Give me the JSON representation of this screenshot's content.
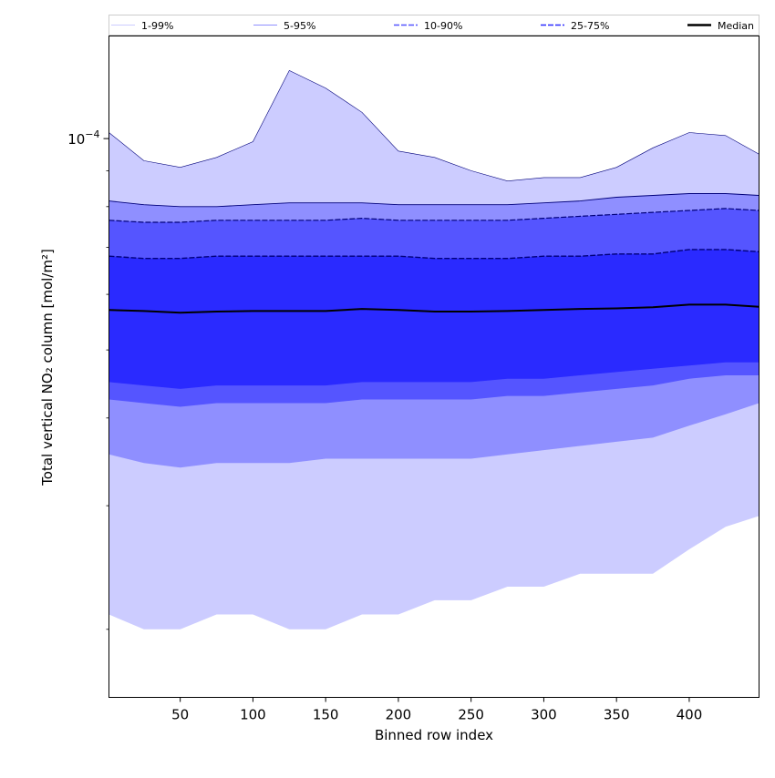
{
  "chart_data": {
    "type": "area",
    "title": "",
    "xlabel": "Binned row index",
    "ylabel": "Total vertical NO₂ column [mol/m²]",
    "xlim": [
      1,
      448
    ],
    "x_ticks": [
      50,
      100,
      150,
      200,
      250,
      300,
      350,
      400
    ],
    "ylim": [
      1.6e-05,
      0.00014
    ],
    "y_scale": "log",
    "y_tick_labels": [
      {
        "value": 0.0001,
        "base": "10",
        "exp": "−4"
      }
    ],
    "grid": false,
    "legend_position": "top, above plot",
    "x": [
      1,
      25,
      50,
      75,
      100,
      125,
      150,
      175,
      200,
      225,
      250,
      275,
      300,
      325,
      350,
      375,
      400,
      425,
      448
    ],
    "series": [
      {
        "name": "1-99%",
        "color": "#ccccff",
        "upper": [
          0.000102,
          9.3e-05,
          9.1e-05,
          9.4e-05,
          9.9e-05,
          0.000125,
          0.000118,
          0.000109,
          9.6e-05,
          9.4e-05,
          9e-05,
          8.7e-05,
          8.8e-05,
          8.8e-05,
          9.1e-05,
          9.7e-05,
          0.000102,
          0.000101,
          9.5e-05
        ],
        "lower": [
          2.1e-05,
          2e-05,
          2e-05,
          2.1e-05,
          2.1e-05,
          2e-05,
          2e-05,
          2.1e-05,
          2.1e-05,
          2.2e-05,
          2.2e-05,
          2.3e-05,
          2.3e-05,
          2.4e-05,
          2.4e-05,
          2.4e-05,
          2.6e-05,
          2.8e-05,
          2.9e-05
        ]
      },
      {
        "name": "5-95%",
        "color": "#8f8fff",
        "upper": [
          8.15e-05,
          8.05e-05,
          8e-05,
          8e-05,
          8.05e-05,
          8.1e-05,
          8.1e-05,
          8.1e-05,
          8.05e-05,
          8.05e-05,
          8.05e-05,
          8.05e-05,
          8.1e-05,
          8.15e-05,
          8.25e-05,
          8.3e-05,
          8.35e-05,
          8.35e-05,
          8.3e-05
        ],
        "lower": [
          3.55e-05,
          3.45e-05,
          3.4e-05,
          3.45e-05,
          3.45e-05,
          3.45e-05,
          3.5e-05,
          3.5e-05,
          3.5e-05,
          3.5e-05,
          3.5e-05,
          3.55e-05,
          3.6e-05,
          3.65e-05,
          3.7e-05,
          3.75e-05,
          3.9e-05,
          4.05e-05,
          4.2e-05
        ]
      },
      {
        "name": "10-90%",
        "color": "#5555ff",
        "upper": [
          7.65e-05,
          7.6e-05,
          7.6e-05,
          7.65e-05,
          7.65e-05,
          7.65e-05,
          7.65e-05,
          7.7e-05,
          7.65e-05,
          7.65e-05,
          7.65e-05,
          7.65e-05,
          7.7e-05,
          7.75e-05,
          7.8e-05,
          7.85e-05,
          7.9e-05,
          7.95e-05,
          7.9e-05
        ],
        "lower": [
          4.25e-05,
          4.2e-05,
          4.15e-05,
          4.2e-05,
          4.2e-05,
          4.2e-05,
          4.2e-05,
          4.25e-05,
          4.25e-05,
          4.25e-05,
          4.25e-05,
          4.3e-05,
          4.3e-05,
          4.35e-05,
          4.4e-05,
          4.45e-05,
          4.55e-05,
          4.6e-05,
          4.6e-05
        ]
      },
      {
        "name": "25-75%",
        "color": "#2a2aff",
        "upper": [
          6.8e-05,
          6.75e-05,
          6.75e-05,
          6.8e-05,
          6.8e-05,
          6.8e-05,
          6.8e-05,
          6.8e-05,
          6.8e-05,
          6.75e-05,
          6.75e-05,
          6.75e-05,
          6.8e-05,
          6.8e-05,
          6.85e-05,
          6.85e-05,
          6.95e-05,
          6.95e-05,
          6.9e-05
        ],
        "lower": [
          4.5e-05,
          4.45e-05,
          4.4e-05,
          4.45e-05,
          4.45e-05,
          4.45e-05,
          4.45e-05,
          4.5e-05,
          4.5e-05,
          4.5e-05,
          4.5e-05,
          4.55e-05,
          4.55e-05,
          4.6e-05,
          4.65e-05,
          4.7e-05,
          4.75e-05,
          4.8e-05,
          4.8e-05
        ]
      },
      {
        "name": "Median",
        "color": "#000000",
        "values": [
          5.7e-05,
          5.68e-05,
          5.65e-05,
          5.67e-05,
          5.68e-05,
          5.68e-05,
          5.68e-05,
          5.72e-05,
          5.7e-05,
          5.67e-05,
          5.67e-05,
          5.68e-05,
          5.7e-05,
          5.72e-05,
          5.73e-05,
          5.75e-05,
          5.8e-05,
          5.8e-05,
          5.76e-05
        ]
      }
    ]
  }
}
